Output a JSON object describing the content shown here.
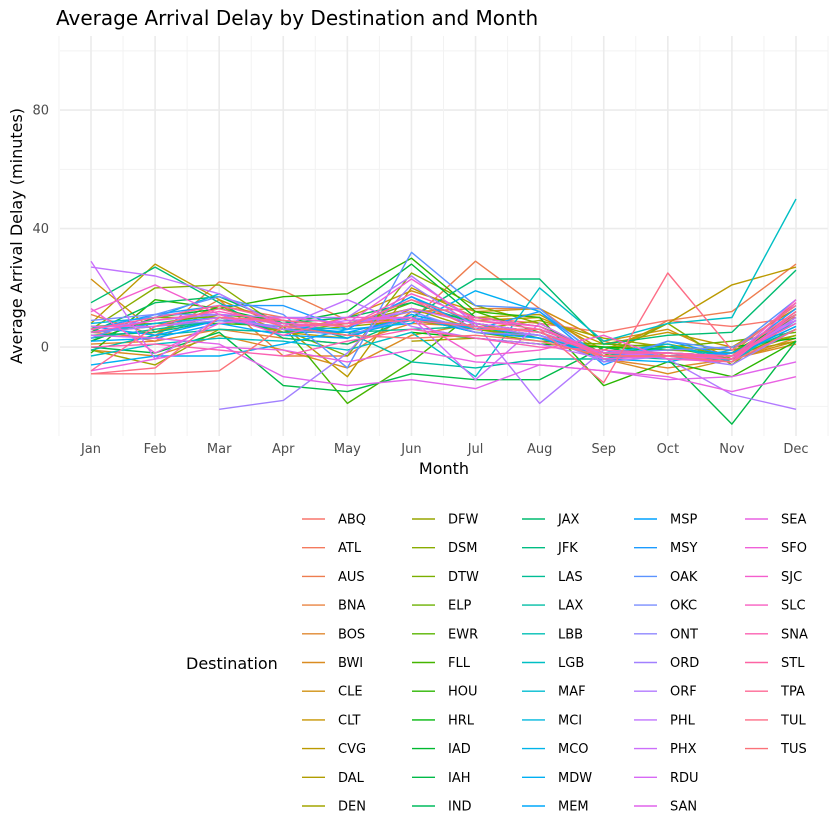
{
  "chart_data": {
    "type": "line",
    "title": "Average Arrival Delay by Destination and Month",
    "xlabel": "Month",
    "ylabel": "Average Arrival Delay (minutes)",
    "categories": [
      "Jan",
      "Feb",
      "Mar",
      "Apr",
      "May",
      "Jun",
      "Jul",
      "Aug",
      "Sep",
      "Oct",
      "Nov",
      "Dec"
    ],
    "y_ticks": [
      0,
      40,
      80
    ],
    "ylim": [
      -30,
      105
    ],
    "grid": true,
    "legend": {
      "title": "Destination",
      "placement": "bottom"
    },
    "series": [
      {
        "name": "ABQ",
        "color": "#F8766D",
        "values": [
          null,
          null,
          null,
          8,
          7,
          12,
          10,
          8,
          5,
          9,
          7,
          10
        ]
      },
      {
        "name": "ATL",
        "color": "#F47A5E",
        "values": [
          6,
          2,
          14,
          10,
          8,
          10,
          7,
          5,
          -2,
          -2,
          -3,
          12
        ]
      },
      {
        "name": "AUS",
        "color": "#EE7D4F",
        "values": [
          5,
          3,
          22,
          19,
          9,
          9,
          29,
          13,
          -3,
          9,
          12,
          28
        ]
      },
      {
        "name": "BNA",
        "color": "#E98340",
        "values": [
          11,
          4,
          16,
          -3,
          -3,
          12,
          13,
          13,
          2,
          -3,
          -2,
          15
        ]
      },
      {
        "name": "BOS",
        "color": "#E18831",
        "values": [
          1,
          2,
          6,
          3,
          1,
          8,
          7,
          4,
          -4,
          -7,
          -4,
          3
        ]
      },
      {
        "name": "BWI",
        "color": "#DA8C21",
        "values": [
          -1,
          -3,
          4,
          -1,
          -7,
          4,
          8,
          3,
          -4,
          -9,
          -4,
          1
        ]
      },
      {
        "name": "CLE",
        "color": "#D09111",
        "values": [
          23,
          5,
          14,
          5,
          10,
          19,
          12,
          13,
          2,
          6,
          -4,
          2
        ]
      },
      {
        "name": "CLT",
        "color": "#C79501",
        "values": [
          4,
          5,
          11,
          5,
          3,
          13,
          9,
          10,
          1,
          5,
          0,
          13
        ]
      },
      {
        "name": "CVG",
        "color": "#BB9A00",
        "values": [
          8,
          28,
          16,
          7,
          -10,
          20,
          10,
          11,
          -1,
          8,
          21,
          27
        ]
      },
      {
        "name": "DAL",
        "color": "#B09D00",
        "values": [
          null,
          null,
          null,
          null,
          null,
          2,
          3,
          1,
          0,
          -1,
          -2,
          2
        ]
      },
      {
        "name": "DEN",
        "color": "#A3A500",
        "values": [
          -1,
          -6,
          6,
          5,
          8,
          13,
          6,
          9,
          3,
          0,
          -1,
          4
        ]
      },
      {
        "name": "DFW",
        "color": "#97A600",
        "values": [
          2,
          10,
          10,
          5,
          7,
          9,
          6,
          3,
          0,
          1,
          -3,
          4
        ]
      },
      {
        "name": "DSM",
        "color": "#89AC00",
        "values": [
          6,
          20,
          21,
          6,
          -3,
          25,
          14,
          8,
          -3,
          8,
          -6,
          11
        ]
      },
      {
        "name": "DTW",
        "color": "#7BAF00",
        "values": [
          5,
          7,
          10,
          8,
          4,
          10,
          6,
          4,
          -3,
          -2,
          -4,
          6
        ]
      },
      {
        "name": "ELP",
        "color": "#6BB100",
        "values": [
          null,
          null,
          null,
          null,
          null,
          10,
          5,
          2,
          1,
          0,
          2,
          5
        ]
      },
      {
        "name": "EWR",
        "color": "#59B400",
        "values": [
          7,
          8,
          11,
          9,
          7,
          15,
          8,
          5,
          -3,
          -3,
          -2,
          11
        ]
      },
      {
        "name": "FLL",
        "color": "#45B500",
        "values": [
          5,
          8,
          8,
          7,
          -19,
          -5,
          12,
          5,
          -3,
          0,
          -4,
          11
        ]
      },
      {
        "name": "HOU",
        "color": "#2BB600",
        "values": [
          -2,
          16,
          13,
          17,
          18,
          30,
          12,
          10,
          -13,
          -5,
          -10,
          2
        ]
      },
      {
        "name": "HRL",
        "color": "#00B80B",
        "values": [
          null,
          null,
          null,
          null,
          null,
          5,
          3,
          1,
          0,
          -1,
          0,
          3
        ]
      },
      {
        "name": "IAD",
        "color": "#00B930",
        "values": [
          2,
          10,
          13,
          8,
          12,
          28,
          10,
          7,
          -2,
          -2,
          -4,
          12
        ]
      },
      {
        "name": "IAH",
        "color": "#00BA48",
        "values": [
          0,
          -2,
          5,
          -13,
          -15,
          -9,
          -11,
          -11,
          0,
          -4,
          -26,
          2
        ]
      },
      {
        "name": "IND",
        "color": "#00BB5E",
        "values": [
          5,
          15,
          17,
          8,
          10,
          15,
          8,
          5,
          -2,
          0,
          -3,
          10
        ]
      },
      {
        "name": "JAX",
        "color": "#00BC71",
        "values": [
          15,
          27,
          15,
          3,
          1,
          10,
          23,
          23,
          1,
          4,
          5,
          26
        ]
      },
      {
        "name": "JFK",
        "color": "#00BD83",
        "values": [
          4,
          5,
          9,
          9,
          3,
          11,
          6,
          6,
          -2,
          -2,
          -3,
          7
        ]
      },
      {
        "name": "LAS",
        "color": "#00BD95",
        "values": [
          3,
          6,
          9,
          6,
          5,
          6,
          7,
          3,
          -3,
          -4,
          -4,
          9
        ]
      },
      {
        "name": "LAX",
        "color": "#00BDA5",
        "values": [
          -1,
          4,
          6,
          5,
          5,
          -5,
          -7,
          -4,
          -4,
          0,
          -3,
          6
        ]
      },
      {
        "name": "LBB",
        "color": "#00BFB5",
        "values": [
          null,
          null,
          null,
          null,
          null,
          null,
          null,
          null,
          null,
          null,
          null,
          null
        ]
      },
      {
        "name": "LGB",
        "color": "#00BFC4",
        "values": [
          -3,
          1,
          3,
          2,
          -1,
          5,
          -10,
          20,
          2,
          8,
          10,
          50
        ]
      },
      {
        "name": "MAF",
        "color": "#00BCD1",
        "values": [
          null,
          null,
          null,
          null,
          null,
          null,
          null,
          null,
          null,
          null,
          null,
          null
        ]
      },
      {
        "name": "MCI",
        "color": "#00B8DD",
        "values": [
          8,
          10,
          18,
          7,
          6,
          17,
          8,
          5,
          -2,
          1,
          -5,
          9
        ]
      },
      {
        "name": "MCO",
        "color": "#00B4E9",
        "values": [
          5,
          8,
          10,
          6,
          4,
          9,
          7,
          4,
          -3,
          -2,
          -3,
          8
        ]
      },
      {
        "name": "MDW",
        "color": "#00AFF3",
        "values": [
          -6,
          -3,
          -3,
          1,
          6,
          8,
          19,
          12,
          -4,
          -5,
          -1,
          14
        ]
      },
      {
        "name": "MEM",
        "color": "#00A9FB",
        "values": [
          2,
          3,
          8,
          4,
          3,
          11,
          6,
          6,
          -2,
          -3,
          -2,
          8
        ]
      },
      {
        "name": "MSP",
        "color": "#00A2FF",
        "values": [
          7,
          4,
          9,
          7,
          5,
          10,
          5,
          3,
          -3,
          -2,
          -3,
          7
        ]
      },
      {
        "name": "MSY",
        "color": "#1C9BFF",
        "values": [
          6,
          11,
          14,
          14,
          6,
          17,
          6,
          12,
          -6,
          2,
          -3,
          13
        ]
      },
      {
        "name": "OAK",
        "color": "#5C93FF",
        "values": [
          3,
          11,
          17,
          11,
          -7,
          32,
          14,
          13,
          -5,
          2,
          -1,
          16
        ]
      },
      {
        "name": "OKC",
        "color": "#7A8DFF",
        "values": [
          9,
          11,
          11,
          6,
          4,
          10,
          7,
          4,
          -2,
          -1,
          0,
          9
        ]
      },
      {
        "name": "ONT",
        "color": "#8F87FF",
        "values": [
          5,
          7,
          9,
          7,
          8,
          12,
          5,
          4,
          -2,
          -2,
          -3,
          8
        ]
      },
      {
        "name": "ORD",
        "color": "#A180FF",
        "values": [
          null,
          null,
          -21,
          -18,
          -2,
          21,
          7,
          4,
          -5,
          -3,
          -6,
          6
        ]
      },
      {
        "name": "ORF",
        "color": "#B279FF",
        "values": [
          6,
          9,
          11,
          10,
          10,
          24,
          8,
          -19,
          -1,
          -4,
          -16,
          -21
        ]
      },
      {
        "name": "PHL",
        "color": "#C074FF",
        "values": [
          27,
          24,
          18,
          7,
          16,
          7,
          3,
          1,
          -4,
          -3,
          -5,
          6
        ]
      },
      {
        "name": "PHX",
        "color": "#CC6EFB",
        "values": [
          29,
          -4,
          10,
          6,
          9,
          10,
          -11,
          8,
          -3,
          -2,
          -4,
          10
        ]
      },
      {
        "name": "RDU",
        "color": "#D769F5",
        "values": [
          7,
          7,
          10,
          8,
          7,
          13,
          8,
          5,
          -2,
          -2,
          -3,
          9
        ]
      },
      {
        "name": "SAN",
        "color": "#E164EC",
        "values": [
          4,
          3,
          1,
          -10,
          -13,
          -11,
          -14,
          -6,
          -8,
          -11,
          -10,
          -5
        ]
      },
      {
        "name": "SEA",
        "color": "#E962E2",
        "values": [
          -8,
          -4,
          0,
          -1,
          -5,
          -1,
          -5,
          -6,
          -8,
          -10,
          -15,
          -10
        ]
      },
      {
        "name": "SFO",
        "color": "#EF60D8",
        "values": [
          13,
          -2,
          8,
          10,
          8,
          23,
          9,
          7,
          -4,
          -3,
          -4,
          16
        ]
      },
      {
        "name": "SJC",
        "color": "#F45ECD",
        "values": [
          12,
          21,
          11,
          4,
          10,
          10,
          -3,
          -1,
          4,
          -4,
          -5,
          12
        ]
      },
      {
        "name": "SLC",
        "color": "#F85EC0",
        "values": [
          5,
          9,
          12,
          8,
          7,
          18,
          10,
          7,
          -3,
          -3,
          -5,
          15
        ]
      },
      {
        "name": "SNA",
        "color": "#FB61B2",
        "values": [
          0,
          1,
          -1,
          -3,
          2,
          6,
          3,
          0,
          -1,
          -2,
          -3,
          8
        ]
      },
      {
        "name": "STL",
        "color": "#FD64A4",
        "values": [
          6,
          10,
          14,
          9,
          7,
          16,
          9,
          6,
          -2,
          -2,
          -4,
          11
        ]
      },
      {
        "name": "TPA",
        "color": "#FE6895",
        "values": [
          -8,
          7,
          13,
          7,
          8,
          9,
          7,
          5,
          -3,
          -3,
          -3,
          12
        ]
      },
      {
        "name": "TUL",
        "color": "#FD6D86",
        "values": [
          -9,
          -7,
          10,
          9,
          7,
          16,
          6,
          6,
          -12,
          25,
          -1,
          14
        ]
      },
      {
        "name": "TUS",
        "color": "#FB7279",
        "values": [
          -9,
          -9,
          -8,
          7,
          4,
          3,
          4,
          2,
          -3,
          -3,
          -5,
          6
        ]
      }
    ]
  }
}
